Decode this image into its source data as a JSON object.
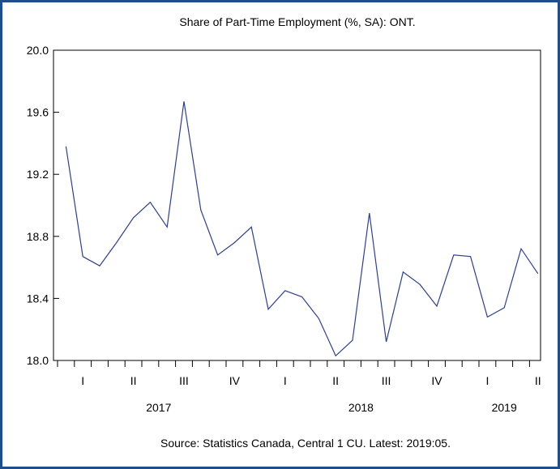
{
  "chart_data": {
    "type": "line",
    "title": "Share of Part-Time Employment (%, SA): ONT.",
    "source": "Source: Statistics Canada, Central 1 CU. Latest: 2019:05.",
    "xlabel": "",
    "ylabel": "",
    "ylim": [
      18.0,
      20.0
    ],
    "yticks": [
      "18.0",
      "18.4",
      "18.8",
      "19.2",
      "19.6",
      "20.0"
    ],
    "x": [
      "2017-01",
      "2017-02",
      "2017-03",
      "2017-04",
      "2017-05",
      "2017-06",
      "2017-07",
      "2017-08",
      "2017-09",
      "2017-10",
      "2017-11",
      "2017-12",
      "2018-01",
      "2018-02",
      "2018-03",
      "2018-04",
      "2018-05",
      "2018-06",
      "2018-07",
      "2018-08",
      "2018-09",
      "2018-10",
      "2018-11",
      "2018-12",
      "2019-01",
      "2019-02",
      "2019-03",
      "2019-04",
      "2019-05"
    ],
    "quarter_labels": [
      "I",
      "II",
      "III",
      "IV",
      "I",
      "II",
      "III",
      "IV",
      "I",
      "II"
    ],
    "year_labels": [
      "2017",
      "2018",
      "2019"
    ],
    "series": [
      {
        "color": "#2e3f8f",
        "values": [
          19.38,
          18.67,
          18.61,
          18.76,
          18.92,
          19.02,
          18.86,
          19.67,
          18.97,
          18.68,
          18.76,
          18.86,
          18.33,
          18.45,
          18.41,
          18.27,
          18.03,
          18.13,
          18.95,
          18.12,
          18.57,
          18.49,
          18.35,
          18.68,
          18.67,
          18.28,
          18.34,
          18.72,
          18.56
        ]
      }
    ],
    "grid": false,
    "legend": "none"
  }
}
